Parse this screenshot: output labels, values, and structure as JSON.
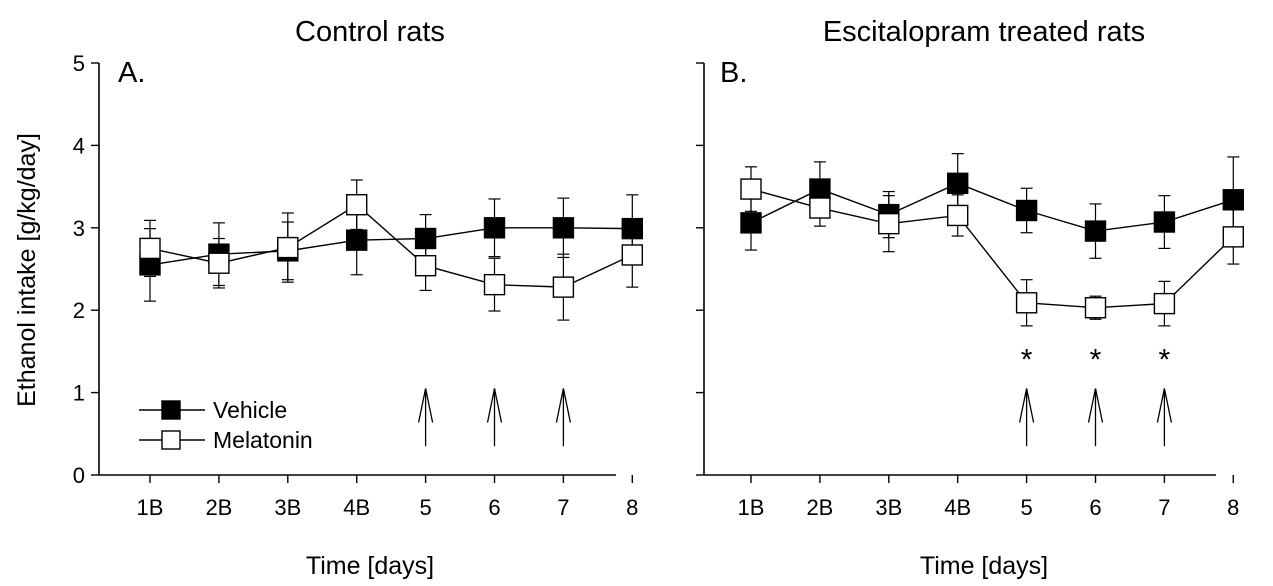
{
  "ylabel": "Ethanol intake [g/kg/day]",
  "legend": {
    "items": [
      "Vehicle",
      "Melatonin"
    ]
  },
  "chart_data": [
    {
      "type": "line",
      "title": "Control rats",
      "panel_label": "A.",
      "xlabel": "Time [days]",
      "ylabel": "Ethanol intake [g/kg/day]",
      "categories": [
        "1B",
        "2B",
        "3B",
        "4B",
        "5",
        "6",
        "7",
        "8"
      ],
      "yticks": [
        "0",
        "1",
        "2",
        "3",
        "4",
        "5"
      ],
      "ylim": [
        0,
        5
      ],
      "grid": false,
      "legend_position": "bottom-left",
      "series": [
        {
          "name": "Vehicle",
          "marker": "filled-square",
          "color": "#000000",
          "values": [
            2.55,
            2.68,
            2.72,
            2.85,
            2.87,
            3.0,
            3.0,
            2.99
          ],
          "errors": [
            0.44,
            0.38,
            0.35,
            0.42,
            0.29,
            0.35,
            0.36,
            0.41
          ]
        },
        {
          "name": "Melatonin",
          "marker": "open-square",
          "color": "#ffffff",
          "values": [
            2.75,
            2.57,
            2.76,
            3.28,
            2.54,
            2.31,
            2.28,
            2.67
          ],
          "errors": [
            0.34,
            0.3,
            0.42,
            0.3,
            0.3,
            0.32,
            0.4,
            0.39
          ]
        }
      ],
      "arrows_at": [
        "5",
        "6",
        "7"
      ],
      "significance_marks": []
    },
    {
      "type": "line",
      "title": "Escitalopram treated rats",
      "panel_label": "B.",
      "xlabel": "Time [days]",
      "ylabel": "",
      "categories": [
        "1B",
        "2B",
        "3B",
        "4B",
        "5",
        "6",
        "7",
        "8"
      ],
      "yticks": [],
      "ylim": [
        0,
        5
      ],
      "grid": false,
      "series": [
        {
          "name": "Vehicle",
          "marker": "filled-square",
          "color": "#000000",
          "values": [
            3.06,
            3.47,
            3.16,
            3.54,
            3.21,
            2.96,
            3.07,
            3.34
          ],
          "errors": [
            0.33,
            0.33,
            0.28,
            0.36,
            0.27,
            0.33,
            0.32,
            0.52
          ]
        },
        {
          "name": "Melatonin",
          "marker": "open-square",
          "color": "#ffffff",
          "values": [
            3.47,
            3.24,
            3.05,
            3.15,
            2.09,
            2.03,
            2.08,
            2.89
          ],
          "errors": [
            0.27,
            0.22,
            0.34,
            0.25,
            0.28,
            0.14,
            0.27,
            0.33
          ]
        }
      ],
      "arrows_at": [
        "5",
        "6",
        "7"
      ],
      "significance_marks": [
        {
          "at": "5",
          "text": "*"
        },
        {
          "at": "6",
          "text": "*"
        },
        {
          "at": "7",
          "text": "*"
        }
      ]
    }
  ]
}
